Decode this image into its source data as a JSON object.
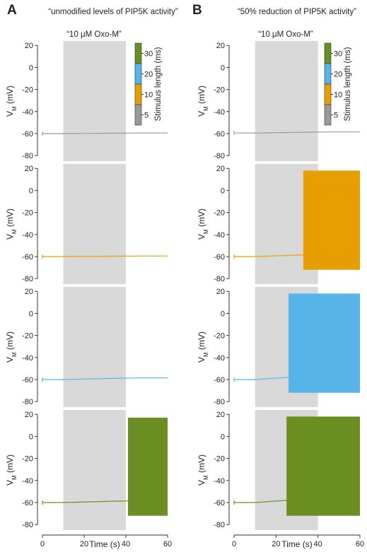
{
  "figure": {
    "panel_letters": [
      "A",
      "B"
    ],
    "column_titles": [
      "“unmodified levels of PIP5K activity”",
      "“50% reduction of PIP5K activity”"
    ],
    "stimulus_label": "“10 μM Oxo-M”",
    "colorbar": {
      "title": "Stimulus length (ms)",
      "ticks": [
        "5",
        "10",
        "20",
        "30"
      ],
      "colors": [
        "#999999",
        "#E69F00",
        "#56B4E9",
        "#6B8E23"
      ]
    },
    "ylabel_main": "V",
    "ylabel_sub": "M",
    "ylabel_unit": " (mV)",
    "xlabel": "Time (s)",
    "yticks": [
      "20",
      "0",
      "-20",
      "-40",
      "-60",
      "-80"
    ],
    "xticks": [
      "0",
      "20",
      "40",
      "60"
    ]
  },
  "chart_data": [
    {
      "type": "line",
      "column": "A",
      "stimulus_ms": 5,
      "color": "#999999",
      "x_range": [
        0,
        60
      ],
      "y_range": [
        -85,
        24
      ],
      "stimulus_window": [
        10,
        40
      ],
      "baseline_start": -60,
      "baseline_end": -59.5,
      "spiking": false
    },
    {
      "type": "line",
      "column": "A",
      "stimulus_ms": 10,
      "color": "#E69F00",
      "x_range": [
        0,
        60
      ],
      "y_range": [
        -85,
        24
      ],
      "stimulus_window": [
        10,
        40
      ],
      "baseline_start": -60,
      "baseline_end": -59.5,
      "spiking": false
    },
    {
      "type": "line",
      "column": "A",
      "stimulus_ms": 20,
      "color": "#56B4E9",
      "x_range": [
        0,
        60
      ],
      "y_range": [
        -85,
        24
      ],
      "stimulus_window": [
        10,
        40
      ],
      "baseline_start": -60,
      "baseline_end": -58.5,
      "spiking": false
    },
    {
      "type": "line",
      "column": "A",
      "stimulus_ms": 30,
      "color": "#6B8E23",
      "x_range": [
        0,
        60
      ],
      "y_range": [
        -85,
        24
      ],
      "stimulus_window": [
        10,
        40
      ],
      "baseline_start": -60,
      "baseline_end": -58.5,
      "spiking": true,
      "spike_onset": 41,
      "spike_max": 17,
      "spike_min": -72
    },
    {
      "type": "line",
      "column": "B",
      "stimulus_ms": 5,
      "color": "#999999",
      "x_range": [
        0,
        60
      ],
      "y_range": [
        -85,
        24
      ],
      "stimulus_window": [
        10,
        40
      ],
      "baseline_start": -59.5,
      "baseline_end": -58.5,
      "spiking": false
    },
    {
      "type": "line",
      "column": "B",
      "stimulus_ms": 10,
      "color": "#E69F00",
      "x_range": [
        0,
        60
      ],
      "y_range": [
        -85,
        24
      ],
      "stimulus_window": [
        10,
        40
      ],
      "baseline_start": -60,
      "baseline_end": -58.5,
      "spiking": true,
      "spike_onset": 33,
      "spike_max": 18,
      "spike_min": -72
    },
    {
      "type": "line",
      "column": "B",
      "stimulus_ms": 20,
      "color": "#56B4E9",
      "x_range": [
        0,
        60
      ],
      "y_range": [
        -85,
        24
      ],
      "stimulus_window": [
        10,
        40
      ],
      "baseline_start": -60,
      "baseline_end": -58,
      "spiking": true,
      "spike_onset": 26,
      "spike_max": 18,
      "spike_min": -72
    },
    {
      "type": "line",
      "column": "B",
      "stimulus_ms": 30,
      "color": "#6B8E23",
      "x_range": [
        0,
        60
      ],
      "y_range": [
        -85,
        24
      ],
      "stimulus_window": [
        10,
        40
      ],
      "baseline_start": -60,
      "baseline_end": -58,
      "spiking": true,
      "spike_onset": 25,
      "spike_max": 18,
      "spike_min": -72
    }
  ]
}
